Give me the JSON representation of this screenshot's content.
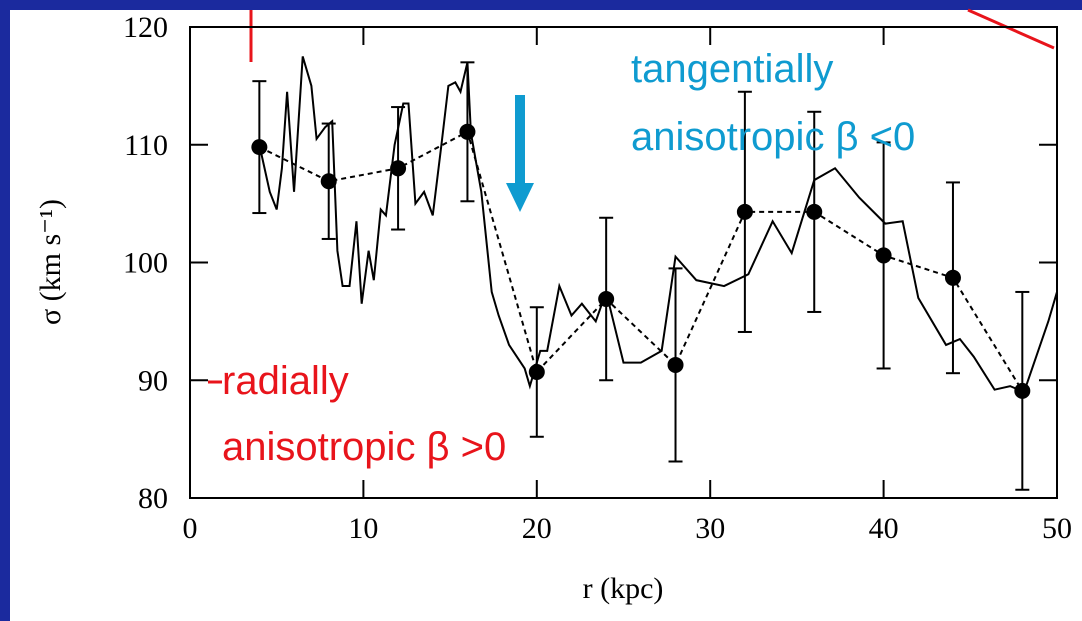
{
  "chart_data": {
    "type": "line",
    "xlabel": "r (kpc)",
    "ylabel": "σ (km s⁻¹)",
    "xlim": [
      0,
      50
    ],
    "ylim": [
      80,
      120
    ],
    "xticks": [
      0,
      10,
      20,
      30,
      40,
      50
    ],
    "yticks": [
      80,
      90,
      100,
      110,
      120
    ],
    "annotations": [
      {
        "text": "tangentially",
        "color": "#0f9bd0"
      },
      {
        "text": "anisotropic β <0",
        "color": "#0f9bd0"
      },
      {
        "text": "radially",
        "color": "#e8141b"
      },
      {
        "text": "anisotropic β >0",
        "color": "#e8141b"
      }
    ],
    "series": [
      {
        "color": "#000000",
        "style": "solid",
        "x": [
          4,
          4.6,
          5.0,
          5.3,
          5.6,
          6.0,
          6.5,
          7.0,
          7.3,
          7.8,
          8.2,
          8.5,
          8.8,
          9.2,
          9.6,
          9.9,
          10.3,
          10.6,
          11.0,
          11.3,
          11.8,
          12.3,
          12.6,
          13.0,
          13.5,
          14.0,
          14.5,
          14.9,
          15.3,
          15.6,
          16.0,
          16.2,
          16.8,
          17.4,
          17.8,
          18.4,
          19.3,
          19.6,
          20.2,
          20.6,
          21.3,
          22.0,
          22.6,
          23.4,
          24.0,
          25.0,
          26.0,
          27.2,
          28.0,
          29.2,
          30.8,
          32.2,
          33.6,
          34.7,
          36.0,
          37.2,
          38.6,
          40.1,
          41.1,
          42.0,
          43.6,
          44.4,
          45.2,
          46.4,
          47.3,
          48.1,
          49.5,
          50
        ],
        "values": [
          110,
          106,
          104.5,
          108,
          114.5,
          106,
          117.5,
          115,
          110.5,
          111.5,
          112,
          101,
          98,
          98,
          103.5,
          96.5,
          101,
          98.5,
          104.5,
          104,
          110,
          113.5,
          113.5,
          105,
          106,
          104,
          110,
          115,
          115.3,
          114.5,
          117,
          111,
          106,
          97.5,
          95.5,
          93,
          91,
          89.5,
          92.5,
          92.5,
          98,
          95.5,
          96.5,
          95,
          97.5,
          91.5,
          91.5,
          92.5,
          100.5,
          98.5,
          98,
          99,
          103.5,
          100.8,
          107,
          108,
          105.5,
          103.3,
          103.5,
          97,
          93,
          93.5,
          92,
          89.2,
          89.5,
          89,
          95,
          97.5
        ]
      },
      {
        "color": "#000000",
        "style": "dashed",
        "markers": true,
        "x": [
          4,
          8,
          12,
          16,
          20,
          24,
          28,
          32,
          36,
          40,
          44,
          48
        ],
        "values": [
          109.8,
          106.9,
          108,
          111.1,
          90.7,
          96.9,
          91.3,
          104.3,
          104.3,
          100.6,
          98.7,
          89.1
        ],
        "errors": [
          5.6,
          4.9,
          5.2,
          5.9,
          5.5,
          6.9,
          8.2,
          10.2,
          8.5,
          9.6,
          8.1,
          8.4
        ]
      }
    ]
  }
}
